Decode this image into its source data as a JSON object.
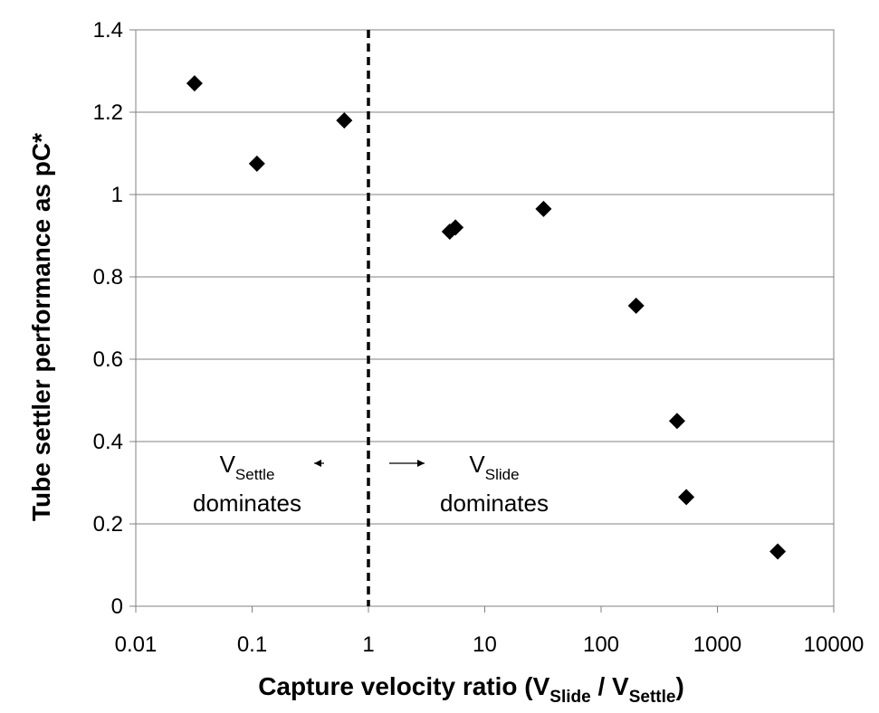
{
  "chart_data": {
    "type": "scatter",
    "xlabel": {
      "parts": [
        {
          "text": "Capture velocity ratio (V",
          "sub": false
        },
        {
          "text": "Slide",
          "sub": true
        },
        {
          "text": " / V",
          "sub": false
        },
        {
          "text": "Settle",
          "sub": true
        },
        {
          "text": ")",
          "sub": false
        }
      ]
    },
    "ylabel": "Tube settler performance as pC*",
    "x_scale": "log",
    "xlim": [
      0.01,
      10000
    ],
    "ylim": [
      0,
      1.4
    ],
    "x_ticks": [
      {
        "value": 0.01,
        "label": "0.01"
      },
      {
        "value": 0.1,
        "label": "0.1"
      },
      {
        "value": 1,
        "label": "1"
      },
      {
        "value": 10,
        "label": "10"
      },
      {
        "value": 100,
        "label": "100"
      },
      {
        "value": 1000,
        "label": "1000"
      },
      {
        "value": 10000,
        "label": "10000"
      }
    ],
    "y_ticks": [
      {
        "value": 0,
        "label": "0"
      },
      {
        "value": 0.2,
        "label": "0.2"
      },
      {
        "value": 0.4,
        "label": "0.4"
      },
      {
        "value": 0.6,
        "label": "0.6"
      },
      {
        "value": 0.8,
        "label": "0.8"
      },
      {
        "value": 1,
        "label": "1"
      },
      {
        "value": 1.2,
        "label": "1.2"
      },
      {
        "value": 1.4,
        "label": "1.4"
      }
    ],
    "grid": {
      "horizontal": true,
      "vertical": false
    },
    "marker": "diamond",
    "marker_color": "#000000",
    "series": [
      {
        "points": [
          {
            "x": 0.032,
            "y": 1.27
          },
          {
            "x": 0.11,
            "y": 1.075
          },
          {
            "x": 0.62,
            "y": 1.18
          },
          {
            "x": 5.0,
            "y": 0.91
          },
          {
            "x": 5.6,
            "y": 0.92
          },
          {
            "x": 32,
            "y": 0.965
          },
          {
            "x": 200,
            "y": 0.73
          },
          {
            "x": 450,
            "y": 0.45
          },
          {
            "x": 540,
            "y": 0.265
          },
          {
            "x": 3300,
            "y": 0.133
          }
        ]
      }
    ],
    "reference_line": {
      "x": 1,
      "style": "dashed"
    },
    "annotations": [
      {
        "id": "settle",
        "main": "V",
        "sub": "Settle",
        "line2": "dominates",
        "arrow": "left"
      },
      {
        "id": "slide",
        "main": "V",
        "sub": "Slide",
        "line2": "dominates",
        "arrow": "right"
      }
    ]
  }
}
